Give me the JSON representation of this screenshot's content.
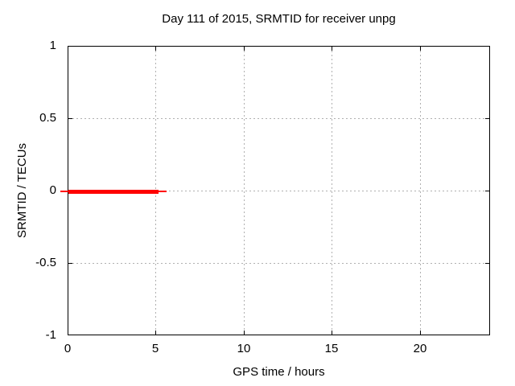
{
  "title": "Day 111 of 2015, SRMTID for receiver unpg",
  "chart_data": {
    "type": "line",
    "title": "Day 111 of 2015, SRMTID for receiver unpg",
    "xlabel": "GPS time / hours",
    "ylabel": "SRMTID / TECUs",
    "xlim": [
      0,
      24
    ],
    "ylim": [
      -1,
      1
    ],
    "xticks": [
      0,
      5,
      10,
      15,
      20
    ],
    "yticks": [
      -1,
      -0.5,
      0,
      0.5,
      1
    ],
    "grid": true,
    "legend": "none",
    "series": [
      {
        "name": "SRMTID",
        "color": "#ff0000",
        "x": [
          0,
          5.12
        ],
        "y": [
          0,
          0
        ],
        "style": "thick flat line at zero with thin plus-marker arms overhanging both ends",
        "tip_overhang_hours": 0.45
      }
    ],
    "colors": {
      "line": "#ff0000",
      "grid": "#b0b0b0",
      "axis": "#000000",
      "background": "#ffffff",
      "text": "#000000"
    }
  }
}
